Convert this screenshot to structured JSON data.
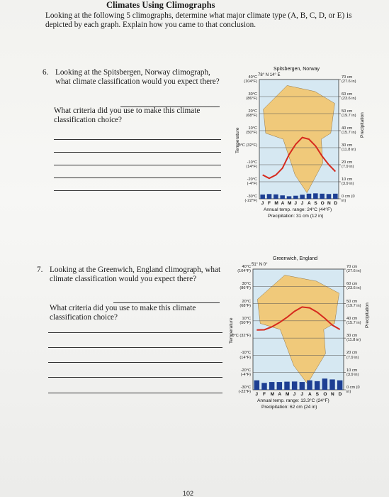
{
  "header": {
    "title": "Climates Using Climographs",
    "instructions": "Looking at the following 5 climographs, determine what major climate type (A, B, C, D, or E) is depicted by each graph. Explain how you came to that conclusion."
  },
  "questions": [
    {
      "number": "6.",
      "text": "Looking at the Spitsbergen, Norway climograph, what climate classification would you expect there?",
      "followup": "What criteria did you use to make this climate classification choice?"
    },
    {
      "number": "7.",
      "text": "Looking at the Greenwich, England climograph, what climate classification would you expect there?",
      "followup": "What criteria did you use to make this climate classification choice?"
    }
  ],
  "charts": [
    {
      "type": "climograph",
      "title": "Spitsbergen, Norway",
      "coordinates": "78° N 14° E",
      "temperature_label": "Temperature",
      "precipitation_label": "Precipitation",
      "months": [
        "J",
        "F",
        "M",
        "A",
        "M",
        "J",
        "J",
        "A",
        "S",
        "O",
        "N",
        "D"
      ],
      "temperature": [
        -16,
        -18,
        -16,
        -12,
        -4,
        2,
        6,
        5,
        1,
        -5,
        -10,
        -14
      ],
      "precipitation": [
        2.5,
        2.8,
        2.6,
        2.0,
        1.5,
        1.8,
        2.4,
        3.0,
        3.2,
        3.0,
        2.8,
        3.0
      ],
      "temperature_color": "#d62a1e",
      "precipitation_color": "#1d3f93",
      "ylim": [
        -30,
        40
      ],
      "yticks": [
        {
          "value": 40,
          "label": "40°C (104°F)"
        },
        {
          "value": 30,
          "label": "30°C (86°F)"
        },
        {
          "value": 20,
          "label": "20°C (68°F)"
        },
        {
          "value": 10,
          "label": "10°C (50°F)"
        },
        {
          "value": 0,
          "label": "0°C (32°F)"
        },
        {
          "value": -10,
          "label": "-10°C (14°F)"
        },
        {
          "value": -20,
          "label": "-20°C (-4°F)"
        },
        {
          "value": -30,
          "label": "-30°C (-22°F)"
        }
      ],
      "y2lim": [
        0,
        70
      ],
      "y2ticks": [
        {
          "value": 70,
          "label": "70 cm (27.6 in)"
        },
        {
          "value": 60,
          "label": "60 cm (23.6 in)"
        },
        {
          "value": 50,
          "label": "50 cm (19.7 in)"
        },
        {
          "value": 40,
          "label": "40 cm (15.7 in)"
        },
        {
          "value": 30,
          "label": "30 cm (11.8 in)"
        },
        {
          "value": 20,
          "label": "20 cm (7.9 in)"
        },
        {
          "value": 10,
          "label": "10 cm (3.9 in)"
        },
        {
          "value": 0,
          "label": "0 cm (0 in)"
        }
      ],
      "annual_range": "Annual temp. range: 24°C (44°F)",
      "annual_precipitation": "Precipitation: 31 cm (12 in)"
    },
    {
      "type": "climograph",
      "title": "Greenwich, England",
      "coordinates": "51° N 0°",
      "temperature_label": "Temperature",
      "precipitation_label": "Precipitation",
      "months": [
        "J",
        "F",
        "M",
        "A",
        "M",
        "J",
        "J",
        "A",
        "S",
        "O",
        "N",
        "D"
      ],
      "temperature": [
        4.7,
        4.8,
        6.5,
        9,
        12,
        15.5,
        18,
        17.5,
        15,
        11.5,
        7.5,
        5
      ],
      "precipitation": [
        5.5,
        4.0,
        4.5,
        4.5,
        4.7,
        4.8,
        4.5,
        5.5,
        5.0,
        6.5,
        6.0,
        5.5
      ],
      "temperature_color": "#d62a1e",
      "precipitation_color": "#1d3f93",
      "ylim": [
        -30,
        40
      ],
      "yticks": [
        {
          "value": 40,
          "label": "40°C (104°F)"
        },
        {
          "value": 30,
          "label": "30°C (86°F)"
        },
        {
          "value": 20,
          "label": "20°C (68°F)"
        },
        {
          "value": 10,
          "label": "10°C (50°F)"
        },
        {
          "value": 0,
          "label": "0°C (32°F)"
        },
        {
          "value": -10,
          "label": "-10°C (14°F)"
        },
        {
          "value": -20,
          "label": "-20°C (-4°F)"
        },
        {
          "value": -30,
          "label": "-30°C (-22°F)"
        }
      ],
      "y2lim": [
        0,
        70
      ],
      "y2ticks": [
        {
          "value": 70,
          "label": "70 cm (27.6 in)"
        },
        {
          "value": 60,
          "label": "60 cm (23.6 in)"
        },
        {
          "value": 50,
          "label": "50 cm (19.7 in)"
        },
        {
          "value": 40,
          "label": "40 cm (15.7 in)"
        },
        {
          "value": 30,
          "label": "30 cm (11.8 in)"
        },
        {
          "value": 20,
          "label": "20 cm (7.9 in)"
        },
        {
          "value": 10,
          "label": "10 cm (3.9 in)"
        },
        {
          "value": 0,
          "label": "0 cm (0 in)"
        }
      ],
      "annual_range": "Annual temp. range: 13.3°C (24°F)",
      "annual_precipitation": "Precipitation: 62 cm (24 in)"
    }
  ],
  "page_number": "102"
}
